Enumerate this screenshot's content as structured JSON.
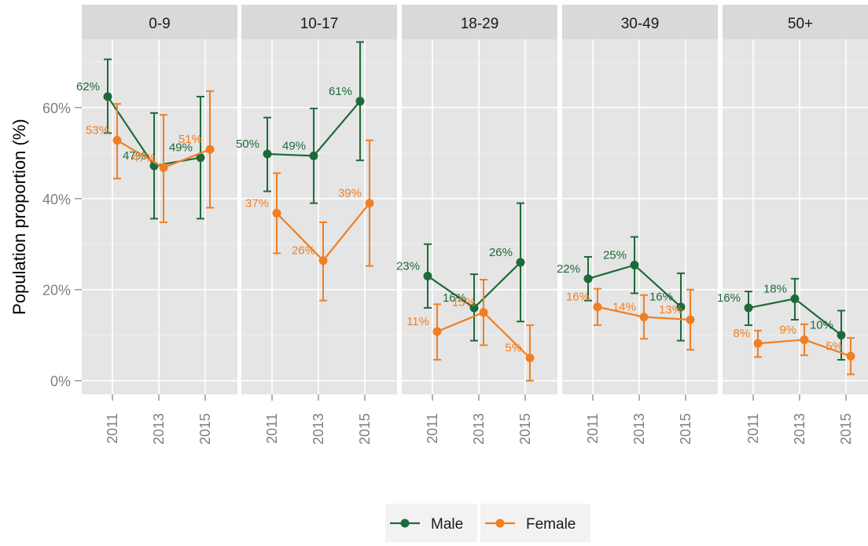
{
  "chart_data": {
    "type": "line",
    "ylabel": "Population proportion (%)",
    "xlabel": "",
    "ylim": [
      -3,
      75
    ],
    "yticks": [
      0,
      20,
      40,
      60
    ],
    "y_tick_labels": [
      "0%",
      "20%",
      "40%",
      "60%"
    ],
    "x_ticks": [
      "2011",
      "2013",
      "2015"
    ],
    "grid": true,
    "legend_position": "bottom",
    "legend": [
      "Male",
      "Female"
    ],
    "colors": {
      "Male": "#1d6a39",
      "Female": "#f07f23"
    },
    "panels": [
      {
        "title": "0-9",
        "series": [
          {
            "name": "Male",
            "x": [
              2011,
              2013,
              2015
            ],
            "values": [
              62.4,
              47.2,
              49.0
            ],
            "lower": [
              54.4,
              35.6,
              35.6
            ],
            "upper": [
              70.6,
              58.8,
              62.4
            ],
            "labels": [
              "62%",
              "47%",
              "49%"
            ]
          },
          {
            "name": "Female",
            "x": [
              2011,
              2013,
              2015
            ],
            "values": [
              52.8,
              46.8,
              50.8
            ],
            "lower": [
              44.4,
              34.8,
              38.0
            ],
            "upper": [
              60.8,
              58.4,
              63.6
            ],
            "labels": [
              "53%",
              "47%",
              "51%"
            ]
          }
        ]
      },
      {
        "title": "10-17",
        "series": [
          {
            "name": "Male",
            "x": [
              2011,
              2013,
              2015
            ],
            "values": [
              49.8,
              49.4,
              61.4
            ],
            "lower": [
              41.6,
              39.0,
              48.4
            ],
            "upper": [
              57.8,
              59.8,
              74.4
            ],
            "labels": [
              "50%",
              "49%",
              "61%"
            ]
          },
          {
            "name": "Female",
            "x": [
              2011,
              2013,
              2015
            ],
            "values": [
              36.8,
              26.4,
              39.0
            ],
            "lower": [
              28.0,
              17.6,
              25.2
            ],
            "upper": [
              45.6,
              34.8,
              52.8
            ],
            "labels": [
              "37%",
              "26%",
              "39%"
            ]
          }
        ]
      },
      {
        "title": "18-29",
        "series": [
          {
            "name": "Male",
            "x": [
              2011,
              2013,
              2015
            ],
            "values": [
              23.0,
              16.0,
              26.0
            ],
            "lower": [
              16.0,
              8.8,
              13.0
            ],
            "upper": [
              30.0,
              23.4,
              39.0
            ],
            "labels": [
              "23%",
              "16%",
              "26%"
            ]
          },
          {
            "name": "Female",
            "x": [
              2011,
              2013,
              2015
            ],
            "values": [
              10.8,
              15.0,
              5.0
            ],
            "lower": [
              4.6,
              7.8,
              0.0
            ],
            "upper": [
              16.8,
              22.2,
              12.2
            ],
            "labels": [
              "11%",
              "15%",
              "5%"
            ]
          }
        ]
      },
      {
        "title": "30-49",
        "series": [
          {
            "name": "Male",
            "x": [
              2011,
              2013,
              2015
            ],
            "values": [
              22.4,
              25.4,
              16.2
            ],
            "lower": [
              17.6,
              19.2,
              8.8
            ],
            "upper": [
              27.2,
              31.6,
              23.6
            ],
            "labels": [
              "22%",
              "25%",
              "16%"
            ]
          },
          {
            "name": "Female",
            "x": [
              2011,
              2013,
              2015
            ],
            "values": [
              16.2,
              14.0,
              13.4
            ],
            "lower": [
              12.2,
              9.2,
              6.8
            ],
            "upper": [
              20.2,
              18.8,
              20.0
            ],
            "labels": [
              "16%",
              "14%",
              "13%"
            ]
          }
        ]
      },
      {
        "title": "50+",
        "series": [
          {
            "name": "Male",
            "x": [
              2011,
              2013,
              2015
            ],
            "values": [
              16.0,
              18.0,
              10.0
            ],
            "lower": [
              12.2,
              13.4,
              4.6
            ],
            "upper": [
              19.6,
              22.4,
              15.4
            ],
            "labels": [
              "16%",
              "18%",
              "10%"
            ]
          },
          {
            "name": "Female",
            "x": [
              2011,
              2013,
              2015
            ],
            "values": [
              8.2,
              9.0,
              5.4
            ],
            "lower": [
              5.2,
              5.6,
              1.4
            ],
            "upper": [
              11.0,
              12.4,
              9.4
            ],
            "labels": [
              "8%",
              "9%",
              "5%"
            ]
          }
        ]
      }
    ]
  }
}
